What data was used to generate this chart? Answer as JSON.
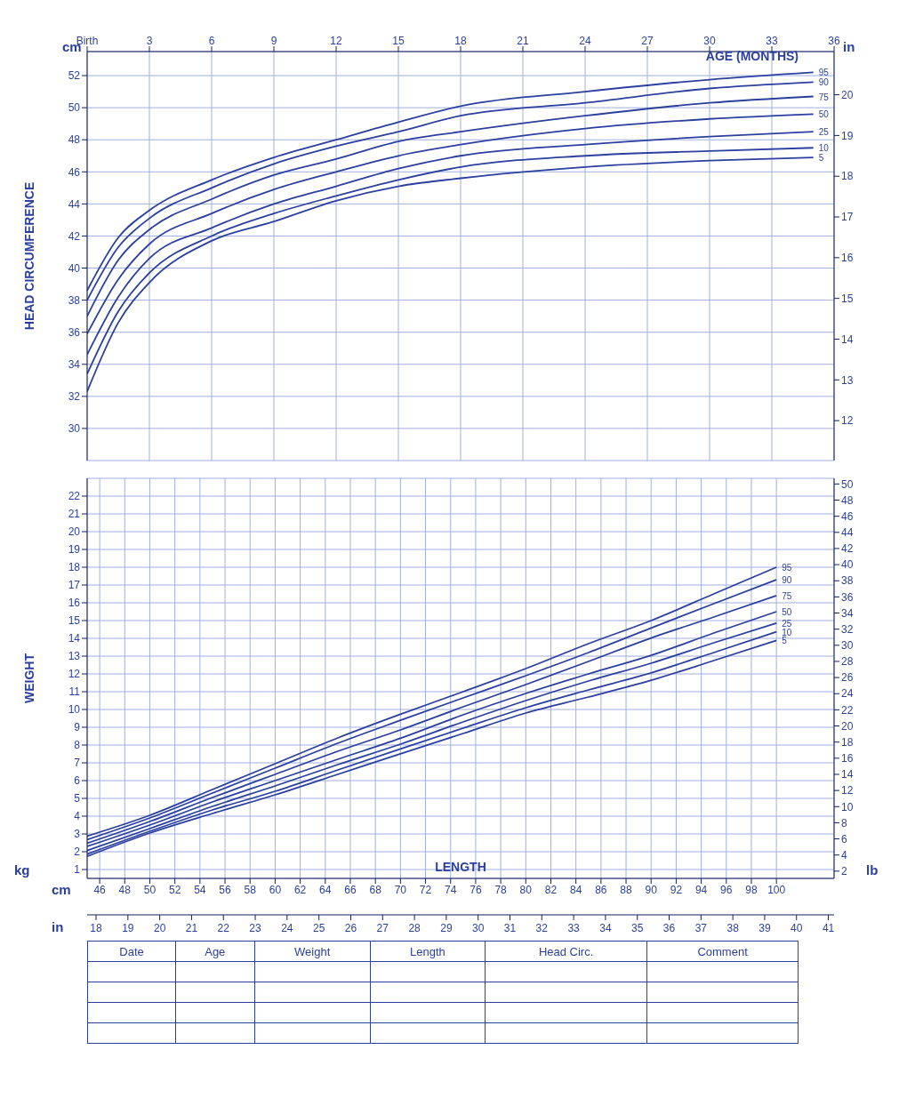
{
  "chart_data": [
    {
      "type": "line",
      "xlabel": "AGE (MONTHS)",
      "ylabel": "HEAD CIRCUMFERENCE",
      "x": [
        0,
        1.5,
        3,
        6,
        9,
        12,
        15,
        18,
        24,
        30,
        35
      ],
      "xlim": [
        0,
        36
      ],
      "xticks": [
        {
          "value": 0,
          "label": "Birth"
        },
        3,
        6,
        9,
        12,
        15,
        18,
        21,
        24,
        27,
        30,
        33,
        36
      ],
      "ylim": [
        28,
        53.5
      ],
      "yticks": [
        30,
        32,
        34,
        36,
        38,
        40,
        42,
        44,
        46,
        48,
        50,
        52
      ],
      "y2lim": [
        11.02,
        21.06
      ],
      "y2ticks": [
        12,
        13,
        14,
        15,
        16,
        17,
        18,
        19,
        20
      ],
      "grid": true,
      "legend": false,
      "marker": "none",
      "line_style": "solid",
      "annotations": [
        "cm",
        "in"
      ],
      "series": [
        {
          "name": "95",
          "color": "#2b3f9f",
          "values": [
            38.6,
            41.9,
            43.6,
            45.5,
            46.9,
            48.0,
            49.1,
            50.1,
            51.0,
            51.75,
            52.2
          ]
        },
        {
          "name": "90",
          "color": "#2b3f9f",
          "values": [
            38.0,
            41.3,
            43.1,
            45.0,
            46.5,
            47.6,
            48.5,
            49.5,
            50.3,
            51.2,
            51.6
          ]
        },
        {
          "name": "75",
          "color": "#2b3f9f",
          "values": [
            37.0,
            40.5,
            42.4,
            44.3,
            45.8,
            46.8,
            47.9,
            48.5,
            49.5,
            50.3,
            50.7
          ]
        },
        {
          "name": "50",
          "color": "#2b3f9f",
          "values": [
            35.9,
            39.3,
            41.5,
            43.4,
            44.9,
            46.0,
            47.0,
            47.7,
            48.7,
            49.3,
            49.6
          ]
        },
        {
          "name": "25",
          "color": "#2b3f9f",
          "values": [
            34.6,
            38.2,
            40.6,
            42.5,
            44.0,
            45.1,
            46.2,
            47.0,
            47.7,
            48.2,
            48.5
          ]
        },
        {
          "name": "10",
          "color": "#2b3f9f",
          "values": [
            33.4,
            37.3,
            39.7,
            42.0,
            43.4,
            44.5,
            45.5,
            46.3,
            47.0,
            47.3,
            47.5
          ]
        },
        {
          "name": "5",
          "color": "#2b3f9f",
          "values": [
            32.3,
            36.6,
            39.1,
            41.7,
            42.9,
            44.2,
            45.1,
            45.6,
            46.3,
            46.7,
            46.9
          ]
        }
      ]
    },
    {
      "type": "line",
      "xlabel": "LENGTH",
      "ylabel": "WEIGHT",
      "x": [
        45,
        50,
        55,
        60,
        65,
        70,
        75,
        80,
        85,
        90,
        95,
        100
      ],
      "xlim": [
        45,
        104.6
      ],
      "xticks": [
        46,
        48,
        50,
        52,
        54,
        56,
        58,
        60,
        62,
        64,
        66,
        68,
        70,
        72,
        74,
        76,
        78,
        80,
        82,
        84,
        86,
        88,
        90,
        92,
        94,
        96,
        98,
        100
      ],
      "x2lim": [
        17.72,
        41.18
      ],
      "x2ticks": [
        18,
        19,
        20,
        21,
        22,
        23,
        24,
        25,
        26,
        27,
        28,
        29,
        30,
        31,
        32,
        33,
        34,
        35,
        36,
        37,
        38,
        39,
        40,
        41
      ],
      "ylim": [
        0.5,
        23
      ],
      "yticks": [
        1,
        2,
        3,
        4,
        5,
        6,
        7,
        8,
        9,
        10,
        11,
        12,
        13,
        14,
        15,
        16,
        17,
        18,
        19,
        20,
        21,
        22
      ],
      "y2lim": [
        1.1,
        50.7
      ],
      "y2ticks": [
        2,
        4,
        6,
        8,
        10,
        12,
        14,
        16,
        18,
        20,
        22,
        24,
        26,
        28,
        30,
        32,
        34,
        36,
        38,
        40,
        42,
        44,
        46,
        48,
        50
      ],
      "grid": true,
      "legend": false,
      "marker": "none",
      "line_style": "solid",
      "annotations": [
        "kg",
        "lb",
        "cm",
        "in"
      ],
      "series": [
        {
          "name": "95",
          "color": "#2b3f9f",
          "values": [
            2.88,
            4.05,
            5.5,
            6.95,
            8.4,
            9.73,
            11.0,
            12.3,
            13.7,
            15.0,
            16.5,
            18.0
          ]
        },
        {
          "name": "90",
          "color": "#2b3f9f",
          "values": [
            2.68,
            3.9,
            5.3,
            6.7,
            8.1,
            9.39,
            10.65,
            11.9,
            13.2,
            14.58,
            15.95,
            17.3
          ]
        },
        {
          "name": "75",
          "color": "#2b3f9f",
          "values": [
            2.48,
            3.7,
            5.05,
            6.35,
            7.65,
            8.85,
            10.15,
            11.4,
            12.7,
            14.02,
            15.2,
            16.4
          ]
        },
        {
          "name": "50",
          "color": "#2b3f9f",
          "values": [
            2.3,
            3.5,
            4.8,
            6.0,
            7.2,
            8.38,
            9.7,
            10.9,
            12.0,
            13.04,
            14.3,
            15.5
          ]
        },
        {
          "name": "25",
          "color": "#2b3f9f",
          "values": [
            2.07,
            3.3,
            4.55,
            5.7,
            6.9,
            8.05,
            9.3,
            10.5,
            11.6,
            12.6,
            13.75,
            14.86
          ]
        },
        {
          "name": "10",
          "color": "#2b3f9f",
          "values": [
            1.87,
            3.15,
            4.35,
            5.4,
            6.6,
            7.78,
            8.95,
            10.1,
            11.1,
            12.06,
            13.2,
            14.37
          ]
        },
        {
          "name": "5",
          "color": "#2b3f9f",
          "values": [
            1.74,
            3.05,
            4.15,
            5.2,
            6.35,
            7.51,
            8.65,
            9.8,
            10.7,
            11.64,
            12.75,
            13.88
          ]
        }
      ]
    },
    {
      "type": "other",
      "annotations": [
        "Date",
        "Age",
        "Weight",
        "Length",
        "Head Circ.",
        "Comment"
      ]
    }
  ]
}
